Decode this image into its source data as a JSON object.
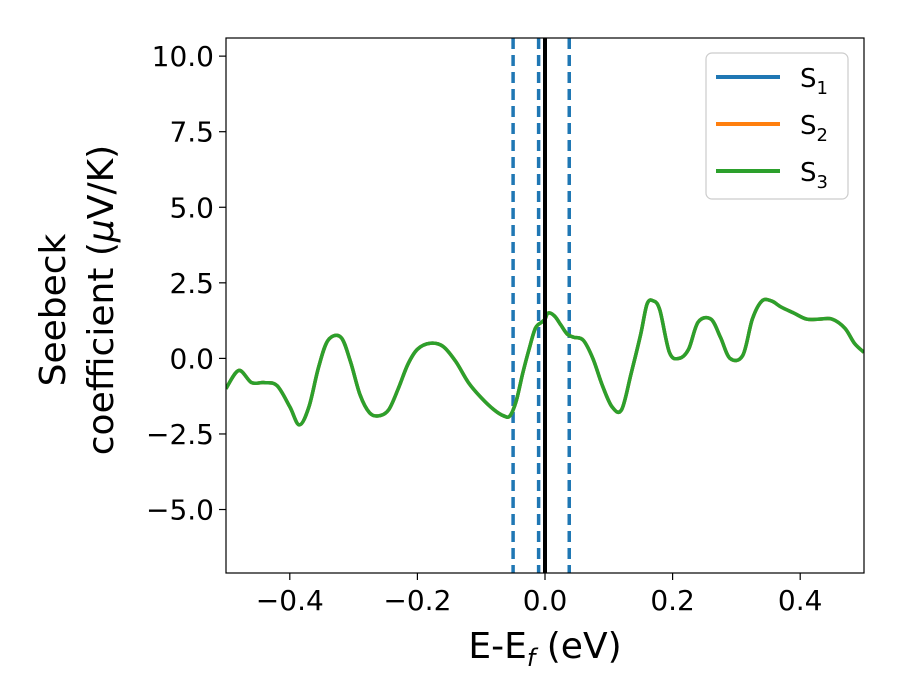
{
  "chart_data": {
    "type": "line",
    "xlabel": {
      "main": "E-E",
      "sub": "f",
      "unit": " (eV)"
    },
    "ylabel": {
      "line1": "Seebeck",
      "line2_text": "coefficient  (",
      "line2_mu": "μ",
      "line2_unit": "V/K)"
    },
    "xlim": [
      -0.5,
      0.5
    ],
    "ylim": [
      -7.1,
      10.6
    ],
    "xticks": [
      {
        "value": -0.4,
        "label": "−0.4"
      },
      {
        "value": -0.2,
        "label": "−0.2"
      },
      {
        "value": 0.0,
        "label": "0.0"
      },
      {
        "value": 0.2,
        "label": "0.2"
      },
      {
        "value": 0.4,
        "label": "0.4"
      }
    ],
    "yticks": [
      {
        "value": -5.0,
        "label": "−5.0"
      },
      {
        "value": -2.5,
        "label": "−2.5"
      },
      {
        "value": 0.0,
        "label": "0.0"
      },
      {
        "value": 2.5,
        "label": "2.5"
      },
      {
        "value": 5.0,
        "label": "5.0"
      },
      {
        "value": 7.5,
        "label": "7.5"
      },
      {
        "value": 10.0,
        "label": "10.0"
      }
    ],
    "legend_position": "top-right",
    "series": [
      {
        "name": "S",
        "sub": "1",
        "color": "#1f77b4"
      },
      {
        "name": "S",
        "sub": "2",
        "color": "#ff7f0e"
      },
      {
        "name": "S",
        "sub": "3",
        "color": "#2ca02c"
      }
    ],
    "x": [
      -0.5,
      -0.48,
      -0.46,
      -0.44,
      -0.42,
      -0.4,
      -0.385,
      -0.37,
      -0.355,
      -0.34,
      -0.32,
      -0.305,
      -0.29,
      -0.275,
      -0.26,
      -0.245,
      -0.23,
      -0.215,
      -0.2,
      -0.18,
      -0.16,
      -0.14,
      -0.12,
      -0.1,
      -0.08,
      -0.065,
      -0.055,
      -0.045,
      -0.035,
      -0.025,
      -0.015,
      -0.005,
      0.0,
      0.005,
      0.015,
      0.025,
      0.035,
      0.045,
      0.06,
      0.075,
      0.09,
      0.105,
      0.12,
      0.135,
      0.15,
      0.16,
      0.17,
      0.18,
      0.195,
      0.21,
      0.225,
      0.24,
      0.26,
      0.275,
      0.29,
      0.31,
      0.325,
      0.34,
      0.355,
      0.37,
      0.39,
      0.41,
      0.43,
      0.45,
      0.47,
      0.485,
      0.5
    ],
    "y": [
      -1.0,
      -0.4,
      -0.8,
      -0.8,
      -0.9,
      -1.6,
      -2.2,
      -1.6,
      -0.3,
      0.6,
      0.7,
      -0.1,
      -1.2,
      -1.8,
      -1.9,
      -1.7,
      -1.0,
      -0.2,
      0.3,
      0.5,
      0.4,
      -0.1,
      -0.8,
      -1.3,
      -1.7,
      -1.9,
      -1.9,
      -1.4,
      -0.5,
      0.3,
      1.0,
      1.2,
      1.3,
      1.5,
      1.4,
      1.1,
      0.8,
      0.7,
      0.6,
      0.0,
      -0.9,
      -1.6,
      -1.7,
      -0.5,
      0.8,
      1.8,
      1.9,
      1.6,
      0.2,
      0.0,
      0.3,
      1.2,
      1.3,
      0.7,
      0.0,
      0.1,
      1.3,
      1.9,
      1.9,
      1.7,
      1.5,
      1.3,
      1.3,
      1.3,
      1.0,
      0.5,
      0.2
    ],
    "vlines": [
      {
        "x": -0.05,
        "style": "dashed",
        "color": "#1f77b4"
      },
      {
        "x": -0.01,
        "style": "dashed",
        "color": "#1f77b4"
      },
      {
        "x": 0.038,
        "style": "dashed",
        "color": "#1f77b4"
      },
      {
        "x": 0.0,
        "style": "solid",
        "color": "#000000"
      }
    ]
  }
}
